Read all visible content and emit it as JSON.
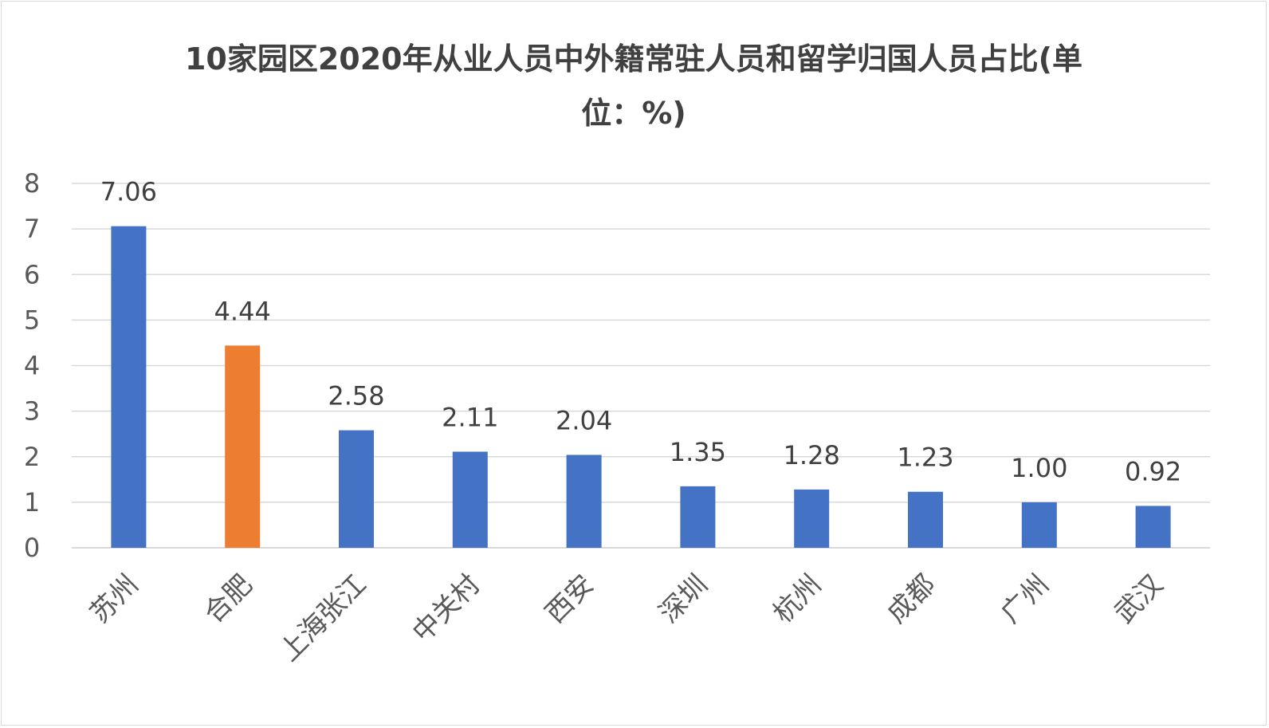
{
  "chart_data": {
    "type": "bar",
    "title_line1": "10家园区2020年从业人员中外籍常驻人员和留学归国人员占比(单",
    "title_line2": "位：%)",
    "categories": [
      "苏州",
      "合肥",
      "上海张江",
      "中关村",
      "西安",
      "深圳",
      "杭州",
      "成都",
      "广州",
      "武汉"
    ],
    "values": [
      7.06,
      4.44,
      2.58,
      2.11,
      2.04,
      1.35,
      1.28,
      1.23,
      1.0,
      0.92
    ],
    "value_labels": [
      "7.06",
      "4.44",
      "2.58",
      "2.11",
      "2.04",
      "1.35",
      "1.28",
      "1.23",
      "1.00",
      "0.92"
    ],
    "highlight_index": 1,
    "ylim": [
      0,
      8
    ],
    "yticks": [
      "0",
      "1",
      "2",
      "3",
      "4",
      "5",
      "6",
      "7",
      "8"
    ],
    "grid": true,
    "legend": "none",
    "colors": {
      "bar": "#4472C4",
      "highlight": "#ED7D31",
      "grid": "#D9D9D9"
    }
  }
}
